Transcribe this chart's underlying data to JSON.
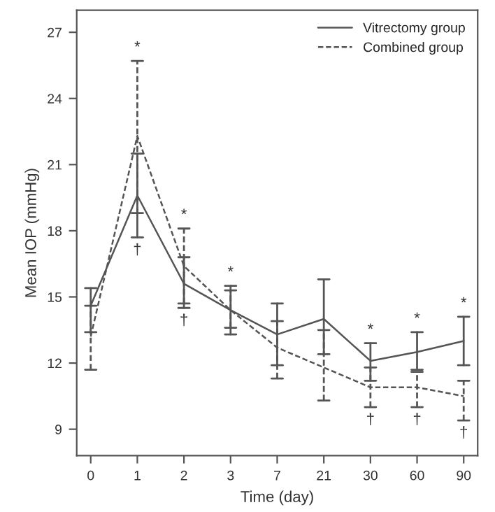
{
  "chart_data": {
    "type": "line",
    "xlabel": "Time (day)",
    "ylabel": "Mean IOP (mmHg)",
    "categories": [
      "0",
      "1",
      "2",
      "3",
      "7",
      "21",
      "30",
      "60",
      "90"
    ],
    "series": [
      {
        "name": "Vitrectomy group",
        "color": "#555555",
        "line_style": "solid",
        "values": [
          14.6,
          19.6,
          15.6,
          14.4,
          13.3,
          14.0,
          12.1,
          12.5,
          13.0
        ],
        "errors": [
          [
            13.4,
            15.4
          ],
          [
            17.7,
            21.5
          ],
          [
            14.5,
            16.8
          ],
          [
            13.3,
            15.5
          ],
          [
            11.9,
            14.7
          ],
          [
            12.4,
            15.8
          ],
          [
            11.2,
            12.9
          ],
          [
            11.7,
            13.4
          ],
          [
            11.9,
            14.1
          ]
        ]
      },
      {
        "name": "Combined group",
        "color": "#555555",
        "line_style": "dashed",
        "values": [
          13.2,
          22.3,
          16.4,
          14.4,
          12.7,
          11.8,
          10.9,
          10.9,
          10.5
        ],
        "errors": [
          [
            11.7,
            14.6
          ],
          [
            18.8,
            25.7
          ],
          [
            14.7,
            18.1
          ],
          [
            13.6,
            15.3
          ],
          [
            11.3,
            13.9
          ],
          [
            10.3,
            13.5
          ],
          [
            10.0,
            11.8
          ],
          [
            10.0,
            11.6
          ],
          [
            9.4,
            11.2
          ]
        ]
      }
    ],
    "ylim": [
      7.8,
      28
    ],
    "yticks": [
      9,
      12,
      15,
      18,
      21,
      24,
      27
    ],
    "grid": false,
    "legend": "top right",
    "marker": "none",
    "annotations": [
      {
        "text": "*",
        "x": "1",
        "y": 25.7
      },
      {
        "text": "*",
        "x": "2",
        "y": 18.1
      },
      {
        "text": "*",
        "x": "3",
        "y": 15.5
      },
      {
        "text": "*",
        "x": "30",
        "y": 12.9
      },
      {
        "text": "*",
        "x": "60",
        "y": 13.4
      },
      {
        "text": "*",
        "x": "90",
        "y": 14.1
      },
      {
        "text": "†",
        "x": "1",
        "y": 17.7
      },
      {
        "text": "†",
        "x": "2",
        "y": 14.5
      },
      {
        "text": "†",
        "x": "30",
        "y": 10.0
      },
      {
        "text": "†",
        "x": "60",
        "y": 10.0
      },
      {
        "text": "†",
        "x": "90",
        "y": 9.4
      }
    ]
  }
}
